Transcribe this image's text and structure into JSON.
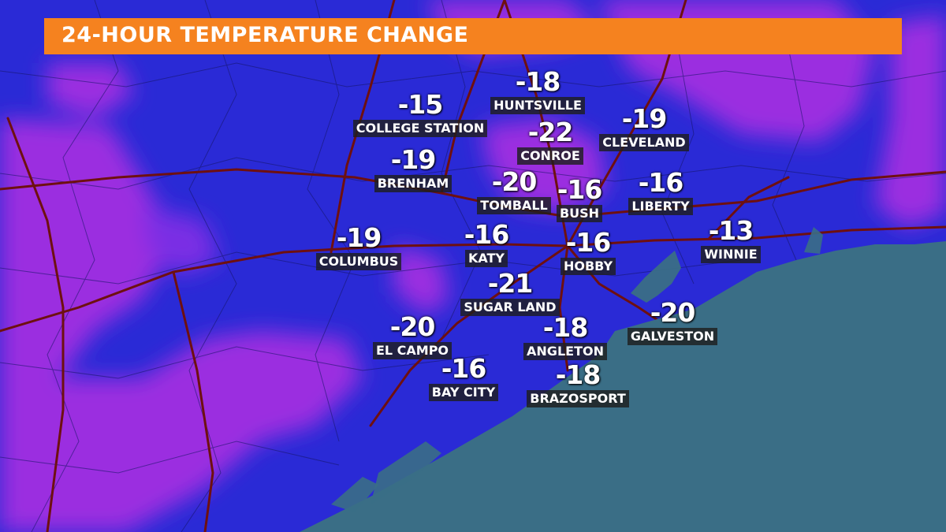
{
  "title": "24-HOUR TEMPERATURE CHANGE",
  "colors": {
    "banner": "#f5821f",
    "land_blue": "#2a2ad6",
    "land_purple": "#9b2fe0",
    "water": "#3a6e86",
    "roads": "#7a1414"
  },
  "cities": [
    {
      "name": "HUNTSVILLE",
      "value": "-18"
    },
    {
      "name": "COLLEGE STATION",
      "value": "-15"
    },
    {
      "name": "CONROE",
      "value": "-22"
    },
    {
      "name": "CLEVELAND",
      "value": "-19"
    },
    {
      "name": "BRENHAM",
      "value": "-19"
    },
    {
      "name": "TOMBALL",
      "value": "-20"
    },
    {
      "name": "BUSH",
      "value": "-16"
    },
    {
      "name": "LIBERTY",
      "value": "-16"
    },
    {
      "name": "COLUMBUS",
      "value": "-19"
    },
    {
      "name": "KATY",
      "value": "-16"
    },
    {
      "name": "HOBBY",
      "value": "-16"
    },
    {
      "name": "WINNIE",
      "value": "-13"
    },
    {
      "name": "SUGAR LAND",
      "value": "-21"
    },
    {
      "name": "EL CAMPO",
      "value": "-20"
    },
    {
      "name": "ANGLETON",
      "value": "-18"
    },
    {
      "name": "GALVESTON",
      "value": "-20"
    },
    {
      "name": "BAY CITY",
      "value": "-16"
    },
    {
      "name": "BRAZOSPORT",
      "value": "-18"
    }
  ]
}
